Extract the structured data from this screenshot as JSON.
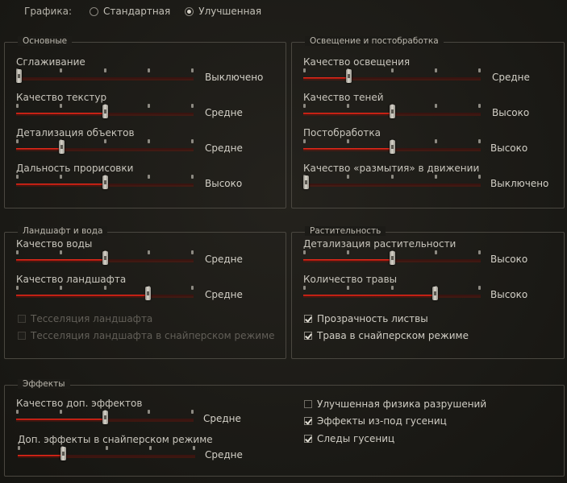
{
  "graphics": {
    "label": "Графика:",
    "options": [
      {
        "label": "Стандартная",
        "selected": false
      },
      {
        "label": "Улучшенная",
        "selected": true
      }
    ]
  },
  "groups": {
    "basic": {
      "title": "Основные",
      "sliders": [
        {
          "label": "Сглаживание",
          "value": "Выключено",
          "level": 0,
          "steps": 5
        },
        {
          "label": "Качество текстур",
          "value": "Средне",
          "level": 2,
          "steps": 5
        },
        {
          "label": "Детализация объектов",
          "value": "Средне",
          "level": 1,
          "steps": 5
        },
        {
          "label": "Дальность прорисовки",
          "value": "Высоко",
          "level": 2,
          "steps": 5
        }
      ]
    },
    "lighting": {
      "title": "Освещение и постобработка",
      "sliders": [
        {
          "label": "Качество освещения",
          "value": "Средне",
          "level": 1,
          "steps": 5
        },
        {
          "label": "Качество теней",
          "value": "Высоко",
          "level": 2,
          "steps": 5
        },
        {
          "label": "Постобработка",
          "value": "Высоко",
          "level": 2,
          "steps": 5
        },
        {
          "label": "Качество «размытия» в движении",
          "value": "Выключено",
          "level": 0,
          "steps": 5
        }
      ]
    },
    "landscape": {
      "title": "Ландшафт и вода",
      "sliders": [
        {
          "label": "Качество воды",
          "value": "Средне",
          "level": 2,
          "steps": 5
        },
        {
          "label": "Качество ландшафта",
          "value": "Средне",
          "level": 3,
          "steps": 5
        }
      ],
      "checkboxes": [
        {
          "label": "Тесселяция ландшафта",
          "checked": false,
          "disabled": true
        },
        {
          "label": "Тесселяция ландшафта в снайперском режиме",
          "checked": false,
          "disabled": true
        }
      ]
    },
    "vegetation": {
      "title": "Растительность",
      "sliders": [
        {
          "label": "Детализация растительности",
          "value": "Высоко",
          "level": 2,
          "steps": 5
        },
        {
          "label": "Количество травы",
          "value": "Высоко",
          "level": 3,
          "steps": 5
        }
      ],
      "checkboxes": [
        {
          "label": "Прозрачность листвы",
          "checked": true,
          "disabled": false
        },
        {
          "label": "Трава в снайперском режиме",
          "checked": true,
          "disabled": false
        }
      ]
    },
    "effects": {
      "title": "Эффекты",
      "sliders": [
        {
          "label": "Качество доп. эффектов",
          "value": "Средне",
          "level": 2,
          "steps": 5
        },
        {
          "label": "Доп. эффекты в снайперском режиме",
          "value": "Средне",
          "level": 1,
          "steps": 5
        }
      ],
      "checkboxes": [
        {
          "label": "Улучшенная физика разрушений",
          "checked": false,
          "disabled": false
        },
        {
          "label": "Эффекты из-под гусениц",
          "checked": true,
          "disabled": false
        },
        {
          "label": "Следы гусениц",
          "checked": true,
          "disabled": false
        }
      ]
    }
  }
}
